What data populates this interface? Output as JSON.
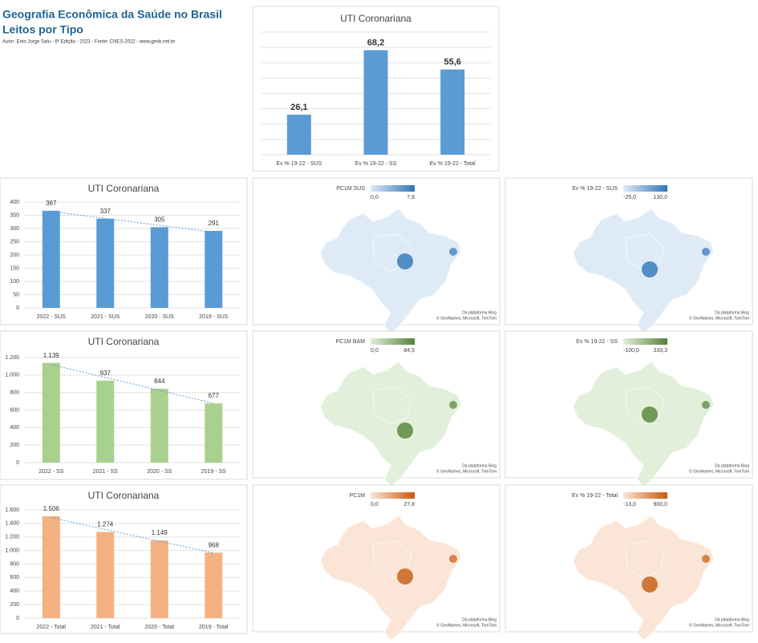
{
  "header": {
    "title": "Geografia Econômica da Saúde no Brasil",
    "subtitle": "Leitos por Tipo",
    "author": "Autor: Enio Jorge Salu - 6ª Edição - 2023 - Fonte: CNES-2022 - www.gesb.net.br"
  },
  "chart_data": [
    {
      "type": "bar",
      "title": "UTI Coronariana",
      "categories": [
        "Ev % 19-22 - SUS",
        "Ev % 19-22 - SS",
        "Ev % 19-22 - Total"
      ],
      "values": [
        26.1,
        68.2,
        55.6
      ],
      "value_labels": [
        "26,1",
        "68,2",
        "55,6"
      ],
      "color": "#5b9bd5",
      "ylim": [
        0,
        80
      ],
      "grid_values": [
        0,
        10,
        20,
        30,
        40,
        50,
        60,
        70,
        80
      ],
      "grid": true
    },
    {
      "type": "bar",
      "title": "UTI Coronariana",
      "categories": [
        "2022 - SUS",
        "2021 - SUS",
        "2020 - SUS",
        "2019 - SUS"
      ],
      "values": [
        367,
        337,
        305,
        291
      ],
      "color": "#5b9bd5",
      "ylim": [
        0,
        400
      ],
      "yticks": [
        0,
        50,
        100,
        150,
        200,
        250,
        300,
        350,
        400
      ],
      "grid": true,
      "trendline": true
    },
    {
      "type": "bar",
      "title": "UTI Coronariana",
      "categories": [
        "2022 - SS",
        "2021 - SS",
        "2020 - SS",
        "2019 - SS"
      ],
      "values": [
        1139,
        937,
        844,
        677
      ],
      "value_labels": [
        "1.139",
        "937",
        "844",
        "677"
      ],
      "color": "#a9d18e",
      "ylim": [
        0,
        1200
      ],
      "yticks": [
        0,
        200,
        400,
        600,
        800,
        {
          "value": 1000,
          "label": "1.000"
        },
        {
          "value": 1200,
          "label": "1.200"
        }
      ],
      "grid": true,
      "trendline": true
    },
    {
      "type": "bar",
      "title": "UTI Coronariana",
      "categories": [
        "2022 - Total",
        "2021 - Total",
        "2020 - Total",
        "2019 - Total"
      ],
      "values": [
        1506,
        1274,
        1149,
        968
      ],
      "value_labels": [
        "1.506",
        "1.274",
        "1.149",
        "968"
      ],
      "color": "#f4b183",
      "ylim": [
        0,
        1600
      ],
      "yticks": [
        0,
        200,
        400,
        600,
        800,
        {
          "value": 1000,
          "label": "1.000"
        },
        {
          "value": 1200,
          "label": "1.200"
        },
        {
          "value": 1400,
          "label": "1.400"
        },
        {
          "value": 1600,
          "label": "1.600"
        }
      ],
      "grid": true,
      "trendline": true
    }
  ],
  "maps": [
    {
      "legend": "PC1M SUS",
      "min": "0,0",
      "max": "7,8",
      "light": "#deebf7",
      "dark": "#2e75b6"
    },
    {
      "legend": "Ev % 19-22 - SUS",
      "min": "-25,0",
      "max": "130,0",
      "light": "#deebf7",
      "dark": "#2e75b6"
    },
    {
      "legend": "PC1M BAM",
      "min": "0,0",
      "max": "84,5",
      "light": "#e2efda",
      "dark": "#548235"
    },
    {
      "legend": "Ev % 19-22 - SS",
      "min": "-100,0",
      "max": "333,3",
      "light": "#e2efda",
      "dark": "#548235"
    },
    {
      "legend": "PC1M",
      "min": "0,0",
      "max": "27,8",
      "light": "#fbe5d6",
      "dark": "#c55a11"
    },
    {
      "legend": "Ev % 19-22 - Total",
      "min": "-13,0",
      "max": "900,0",
      "light": "#fbe5d6",
      "dark": "#c55a11"
    }
  ],
  "attribution": [
    "Da plataforma Bing",
    "© GeoNames, Microsoft, TomTom"
  ]
}
